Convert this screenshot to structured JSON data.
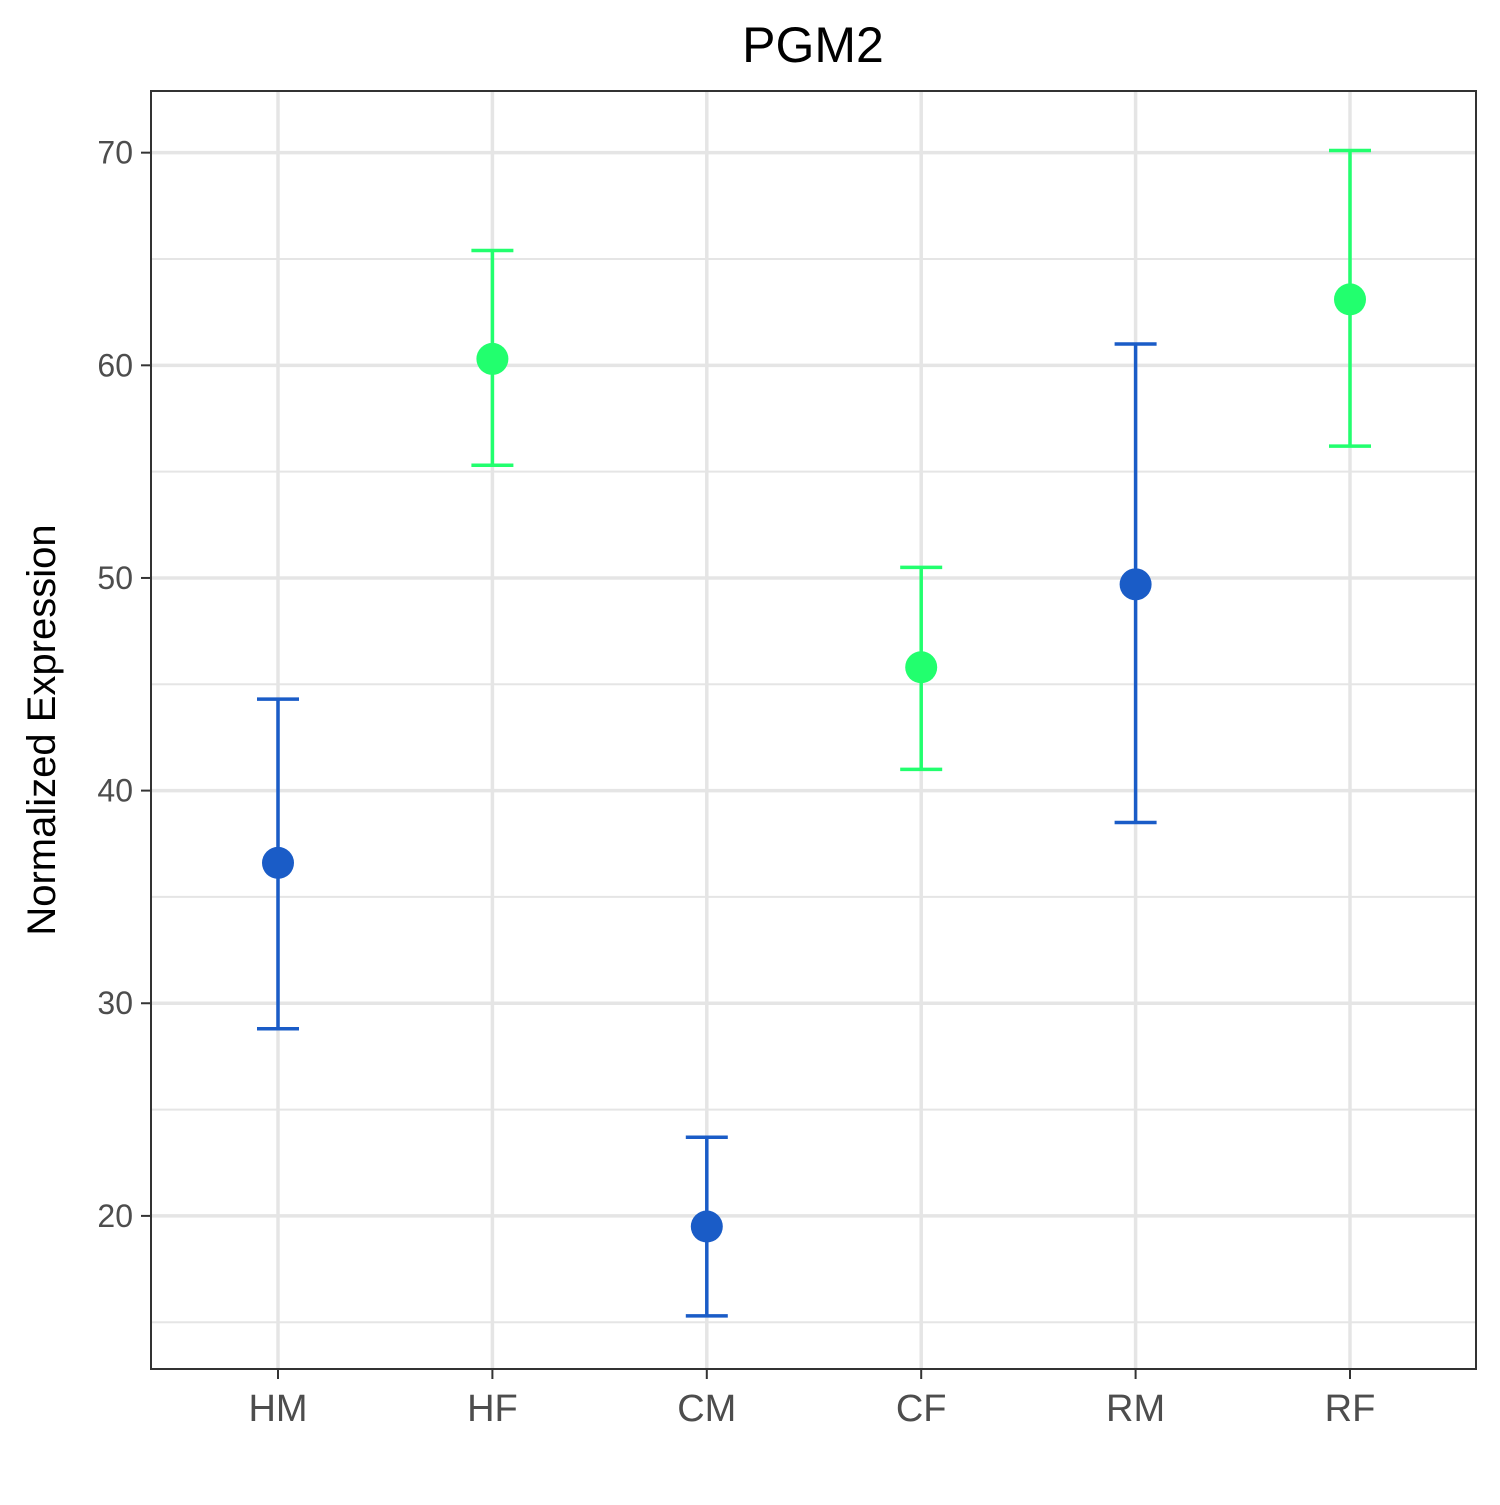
{
  "chart_data": {
    "type": "scatter",
    "title": "PGM2",
    "xlabel": "",
    "ylabel": "Normalized Expression",
    "categories": [
      "HM",
      "HF",
      "CM",
      "CF",
      "RM",
      "RF"
    ],
    "ylim": [
      12.8,
      72.9
    ],
    "y_ticks": [
      20,
      30,
      40,
      50,
      60,
      70
    ],
    "y_minor_ticks": [
      15,
      25,
      35,
      45,
      55,
      65
    ],
    "grid": true,
    "legend": "none",
    "colors": {
      "male": "#1a5cc7",
      "female": "#22ff6e",
      "grid": "#e5e5e5",
      "border": "#333333"
    },
    "points": [
      {
        "category": "HM",
        "mean": 36.6,
        "lower": 28.8,
        "upper": 44.3,
        "group": "male"
      },
      {
        "category": "HF",
        "mean": 60.3,
        "lower": 55.3,
        "upper": 65.4,
        "group": "female"
      },
      {
        "category": "CM",
        "mean": 19.5,
        "lower": 15.3,
        "upper": 23.7,
        "group": "male"
      },
      {
        "category": "CF",
        "mean": 45.8,
        "lower": 41.0,
        "upper": 50.5,
        "group": "female"
      },
      {
        "category": "RM",
        "mean": 49.7,
        "lower": 38.5,
        "upper": 61.0,
        "group": "male"
      },
      {
        "category": "RF",
        "mean": 63.1,
        "lower": 56.2,
        "upper": 70.1,
        "group": "female"
      }
    ]
  }
}
